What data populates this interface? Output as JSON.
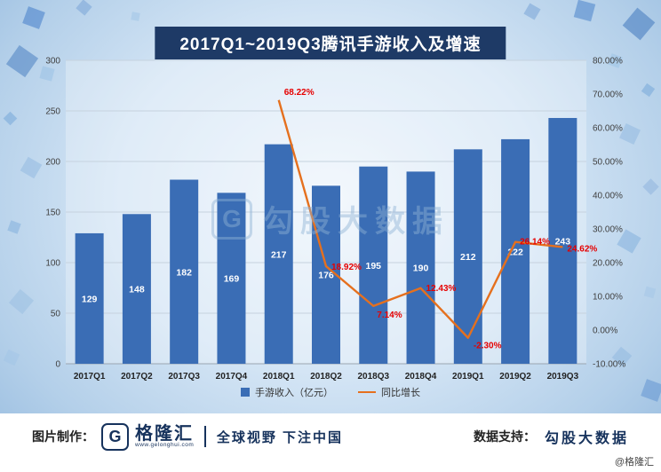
{
  "title": "2017Q1~2019Q3腾讯手游收入及增速",
  "chart_data": {
    "type": "bar+line",
    "categories": [
      "2017Q1",
      "2017Q2",
      "2017Q3",
      "2017Q4",
      "2018Q1",
      "2018Q2",
      "2018Q3",
      "2018Q4",
      "2019Q1",
      "2019Q2",
      "2019Q3"
    ],
    "series": [
      {
        "name": "手游收入（亿元）",
        "type": "bar",
        "axis": "left",
        "color": "#3a6db5",
        "values": [
          129,
          148,
          182,
          169,
          217,
          176,
          195,
          190,
          212,
          222,
          243
        ]
      },
      {
        "name": "同比增长",
        "type": "line",
        "axis": "right",
        "color": "#e5701e",
        "values": [
          null,
          null,
          null,
          null,
          68.22,
          18.92,
          7.14,
          12.43,
          -2.3,
          26.14,
          24.62
        ],
        "labels": [
          "",
          "",
          "",
          "",
          "68.22%",
          "18.92%",
          "7.14%",
          "12.43%",
          "-2.30%",
          "26.14%",
          "24.62%"
        ]
      }
    ],
    "left_axis": {
      "min": 0,
      "max": 300,
      "step": 50,
      "ticks": [
        "0",
        "50",
        "100",
        "150",
        "200",
        "250",
        "300"
      ]
    },
    "right_axis": {
      "min": -10,
      "max": 80,
      "step": 10,
      "ticks": [
        "-10.00%",
        "0.00%",
        "10.00%",
        "20.00%",
        "30.00%",
        "40.00%",
        "50.00%",
        "60.00%",
        "70.00%",
        "80.00%"
      ]
    },
    "legend": [
      {
        "label": "手游收入（亿元）",
        "color": "#3a6db5",
        "shape": "square"
      },
      {
        "label": "同比增长",
        "color": "#e5701e",
        "shape": "line"
      }
    ],
    "bar_label_color": "#ffffff",
    "line_label_color": "#e60000",
    "grid": true,
    "legend_position": "bottom"
  },
  "watermark": {
    "logo": "G",
    "text": "勾股大数据"
  },
  "footer": {
    "made_by_label": "图片制作：",
    "logo_glyph": "G",
    "logo_text": "格隆汇",
    "logo_url": "www.gelonghui.com",
    "slogan": "全球视野 下注中国",
    "data_support_label": "数据支持：",
    "data_support_value": "勾股大数据",
    "handle": "@格隆汇"
  }
}
